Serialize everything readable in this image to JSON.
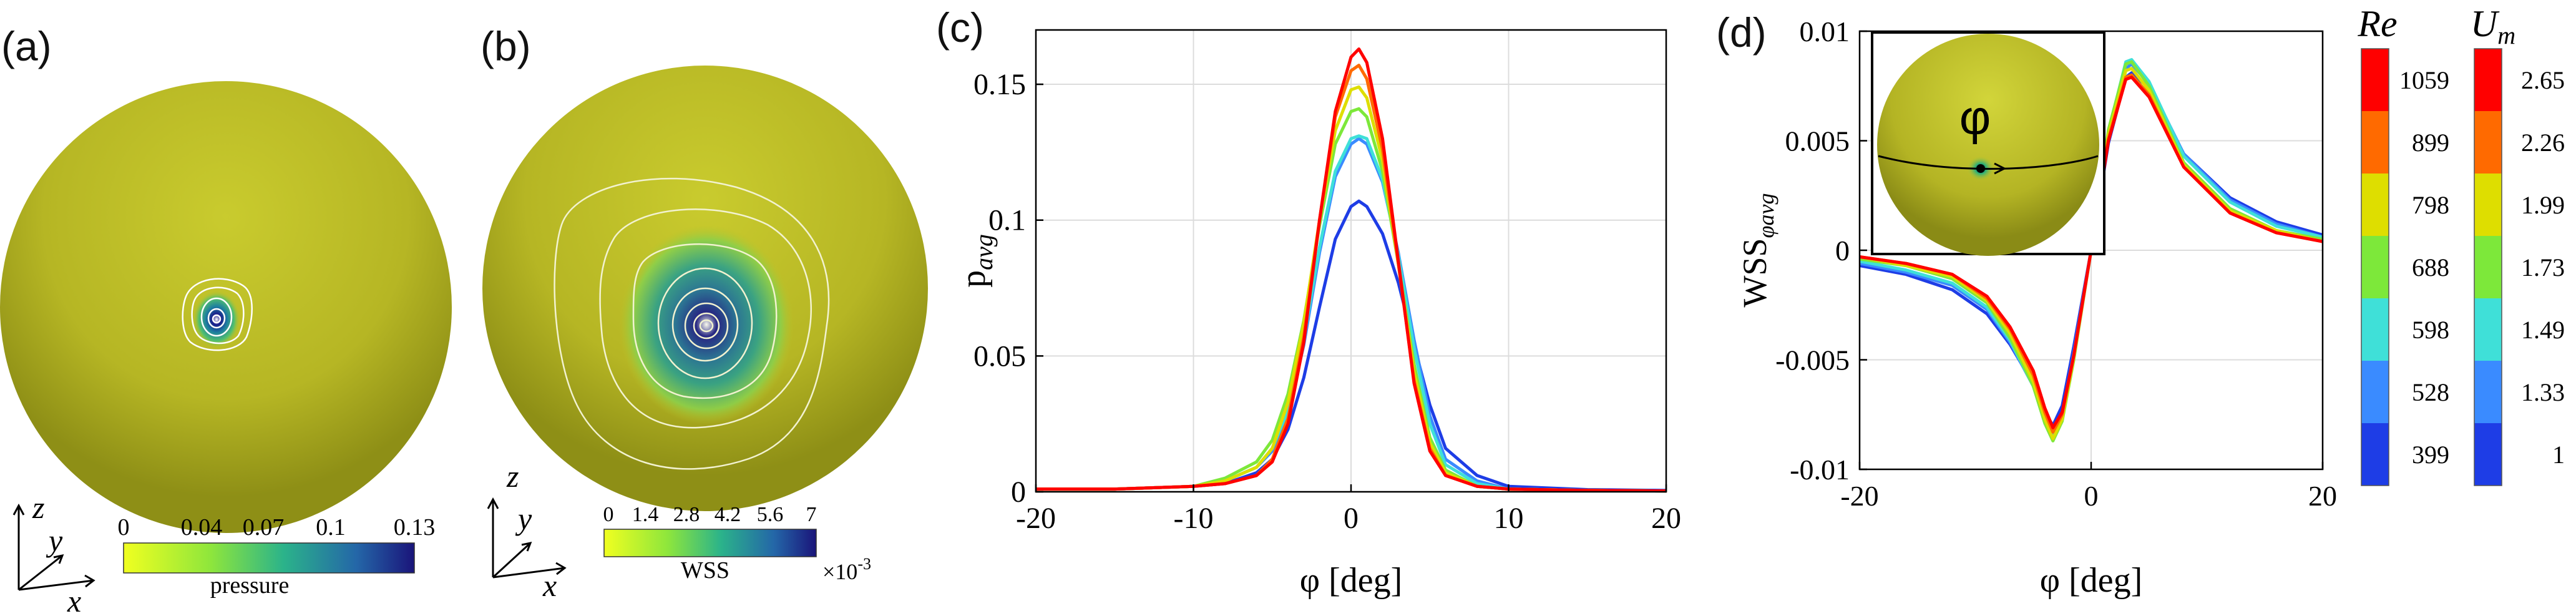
{
  "panels": {
    "a": {
      "label": "(a)",
      "colorbar_ticks": [
        "0",
        "0.04",
        "0.07",
        "0.1",
        "0.13"
      ],
      "colorbar_title": "pressure",
      "axes": [
        "z",
        "y",
        "x"
      ]
    },
    "b": {
      "label": "(b)",
      "colorbar_ticks": [
        "0",
        "1.4",
        "2.8",
        "4.2",
        "5.6",
        "7"
      ],
      "colorbar_title": "WSS",
      "multiplier": "×10",
      "exponent": "-3",
      "axes": [
        "z",
        "y",
        "x"
      ]
    },
    "c": {
      "label": "(c)"
    },
    "d": {
      "label": "(d)",
      "inset_symbol": "φ"
    }
  },
  "legends": {
    "re": {
      "title": "Re",
      "entries": [
        "1059",
        "899",
        "798",
        "688",
        "598",
        "528",
        "399"
      ]
    },
    "um": {
      "title": "U",
      "subscript": "m",
      "entries": [
        "2.65",
        "2.26",
        "1.99",
        "1.73",
        "1.49",
        "1.33",
        "1"
      ]
    }
  },
  "series_colors": [
    "#ff0000",
    "#ff6a00",
    "#dede00",
    "#7de83a",
    "#3fe0d8",
    "#3a8bff",
    "#1e3de6"
  ],
  "chart_data": [
    {
      "type": "line",
      "panel": "c",
      "xlabel": "φ [deg]",
      "ylabel_main": "p",
      "ylabel_sub": "avg",
      "xlim": [
        -20,
        20
      ],
      "ylim": [
        0,
        0.17
      ],
      "xticks": [
        -20,
        -10,
        0,
        10,
        20
      ],
      "yticks": [
        0,
        0.05,
        0.1,
        0.15
      ],
      "ytick_labels": [
        "0",
        "0.05",
        "0.1",
        "0.15"
      ],
      "grid": true,
      "x": [
        -20,
        -15,
        -10,
        -8,
        -6,
        -5,
        -4,
        -3,
        -2,
        -1,
        0,
        0.5,
        1,
        2,
        3,
        4,
        5,
        6,
        8,
        10,
        15,
        20
      ],
      "series": [
        {
          "values": [
            0.001,
            0.001,
            0.002,
            0.003,
            0.006,
            0.011,
            0.025,
            0.055,
            0.1,
            0.14,
            0.16,
            0.163,
            0.158,
            0.13,
            0.085,
            0.04,
            0.015,
            0.006,
            0.002,
            0.001,
            0.0005,
            0.0003
          ]
        },
        {
          "values": [
            0.001,
            0.001,
            0.002,
            0.003,
            0.006,
            0.012,
            0.027,
            0.057,
            0.1,
            0.138,
            0.155,
            0.157,
            0.152,
            0.126,
            0.084,
            0.041,
            0.016,
            0.006,
            0.002,
            0.001,
            0.0005,
            0.0003
          ]
        },
        {
          "values": [
            0.001,
            0.001,
            0.002,
            0.004,
            0.009,
            0.016,
            0.033,
            0.062,
            0.1,
            0.133,
            0.148,
            0.149,
            0.145,
            0.122,
            0.084,
            0.044,
            0.018,
            0.007,
            0.002,
            0.001,
            0.0005,
            0.0003
          ]
        },
        {
          "values": [
            0.001,
            0.001,
            0.002,
            0.005,
            0.011,
            0.019,
            0.036,
            0.063,
            0.098,
            0.128,
            0.14,
            0.141,
            0.138,
            0.118,
            0.084,
            0.047,
            0.02,
            0.008,
            0.002,
            0.001,
            0.0005,
            0.0003
          ]
        },
        {
          "values": [
            0.001,
            0.001,
            0.002,
            0.004,
            0.009,
            0.016,
            0.03,
            0.056,
            0.09,
            0.118,
            0.13,
            0.131,
            0.13,
            0.115,
            0.087,
            0.053,
            0.025,
            0.01,
            0.003,
            0.001,
            0.0005,
            0.0003
          ]
        },
        {
          "values": [
            0.001,
            0.001,
            0.002,
            0.004,
            0.009,
            0.015,
            0.029,
            0.054,
            0.088,
            0.116,
            0.128,
            0.13,
            0.128,
            0.114,
            0.088,
            0.056,
            0.028,
            0.012,
            0.004,
            0.001,
            0.0005,
            0.0003
          ]
        },
        {
          "values": [
            0.001,
            0.001,
            0.002,
            0.003,
            0.007,
            0.012,
            0.023,
            0.042,
            0.068,
            0.093,
            0.105,
            0.107,
            0.105,
            0.095,
            0.077,
            0.054,
            0.032,
            0.016,
            0.006,
            0.002,
            0.0008,
            0.0005
          ]
        }
      ]
    },
    {
      "type": "line",
      "panel": "d",
      "xlabel": "φ [deg]",
      "ylabel_main": "WSS",
      "ylabel_sub": "φavg",
      "xlim": [
        -20,
        20
      ],
      "ylim": [
        -0.01,
        0.01
      ],
      "xticks": [
        -20,
        0,
        20
      ],
      "yticks": [
        -0.01,
        -0.005,
        0,
        0.005,
        0.01
      ],
      "ytick_labels": [
        "-0.01",
        "-0.005",
        "0",
        "0.005",
        "0.01"
      ],
      "grid": true,
      "x": [
        -20,
        -16,
        -12,
        -9,
        -7,
        -5,
        -4,
        -3.3,
        -2.5,
        -1.5,
        0,
        1.5,
        3,
        3.5,
        5,
        8,
        12,
        16,
        20
      ],
      "series": [
        {
          "values": [
            -0.0003,
            -0.0006,
            -0.0011,
            -0.0021,
            -0.0035,
            -0.0055,
            -0.0072,
            -0.0081,
            -0.0074,
            -0.0048,
            0,
            0.005,
            0.0078,
            0.0079,
            0.007,
            0.0038,
            0.0017,
            0.0008,
            0.0004
          ]
        },
        {
          "values": [
            -0.0003,
            -0.0006,
            -0.0011,
            -0.0022,
            -0.0036,
            -0.0057,
            -0.0074,
            -0.0083,
            -0.0075,
            -0.0048,
            0,
            0.0051,
            0.0079,
            0.008,
            0.0071,
            0.0038,
            0.0017,
            0.0008,
            0.0004
          ]
        },
        {
          "values": [
            -0.0003,
            -0.0007,
            -0.0012,
            -0.0023,
            -0.0038,
            -0.006,
            -0.0077,
            -0.0086,
            -0.0077,
            -0.0049,
            0,
            0.0053,
            0.0082,
            0.0083,
            0.0073,
            0.0039,
            0.0018,
            0.0009,
            0.0004
          ]
        },
        {
          "values": [
            -0.0004,
            -0.0007,
            -0.0013,
            -0.0024,
            -0.004,
            -0.0062,
            -0.0079,
            -0.0087,
            -0.0078,
            -0.005,
            0,
            0.0055,
            0.0085,
            0.0086,
            0.0075,
            0.004,
            0.0019,
            0.0009,
            0.0005
          ]
        },
        {
          "values": [
            -0.0005,
            -0.0009,
            -0.0015,
            -0.0026,
            -0.0041,
            -0.0062,
            -0.0078,
            -0.0086,
            -0.0077,
            -0.0049,
            0,
            0.0054,
            0.0086,
            0.0087,
            0.0077,
            0.0043,
            0.0022,
            0.0011,
            0.0006
          ]
        },
        {
          "values": [
            -0.0006,
            -0.001,
            -0.0016,
            -0.0027,
            -0.0042,
            -0.0062,
            -0.0077,
            -0.0084,
            -0.0075,
            -0.0047,
            0,
            0.0052,
            0.0083,
            0.0085,
            0.0076,
            0.0044,
            0.0023,
            0.0012,
            0.0006
          ]
        },
        {
          "values": [
            -0.0007,
            -0.0011,
            -0.0018,
            -0.0029,
            -0.0043,
            -0.0061,
            -0.0074,
            -0.008,
            -0.0071,
            -0.0044,
            0,
            0.0049,
            0.0079,
            0.0081,
            0.0074,
            0.0044,
            0.0024,
            0.0013,
            0.0007
          ]
        }
      ]
    }
  ]
}
